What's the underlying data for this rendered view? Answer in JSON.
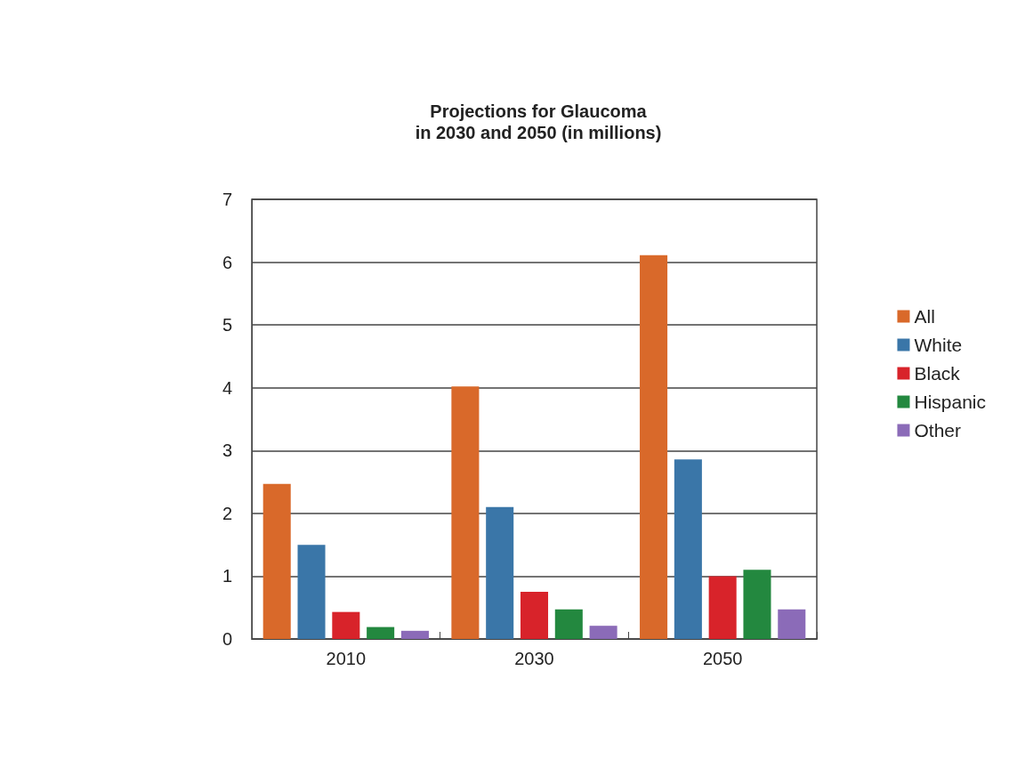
{
  "chart_data": {
    "type": "bar",
    "title": "Projections for Glaucoma\nin 2030 and 2050 (in millions)",
    "categories": [
      "2010",
      "2030",
      "2050"
    ],
    "series": [
      {
        "name": "All",
        "color": "#d9692a",
        "values": [
          2.47,
          4.02,
          6.11
        ]
      },
      {
        "name": "White",
        "color": "#3a76a8",
        "values": [
          1.5,
          2.1,
          2.86
        ]
      },
      {
        "name": "Black",
        "color": "#d8232a",
        "values": [
          0.43,
          0.75,
          1.0
        ]
      },
      {
        "name": "Hispanic",
        "color": "#23883f",
        "values": [
          0.19,
          0.47,
          1.1
        ]
      },
      {
        "name": "Other",
        "color": "#8b6bb8",
        "values": [
          0.13,
          0.21,
          0.47
        ]
      }
    ],
    "ylim": [
      0,
      7
    ],
    "yticks": [
      0,
      1,
      2,
      3,
      4,
      5,
      6,
      7
    ],
    "grid": "y",
    "legend": "right"
  }
}
